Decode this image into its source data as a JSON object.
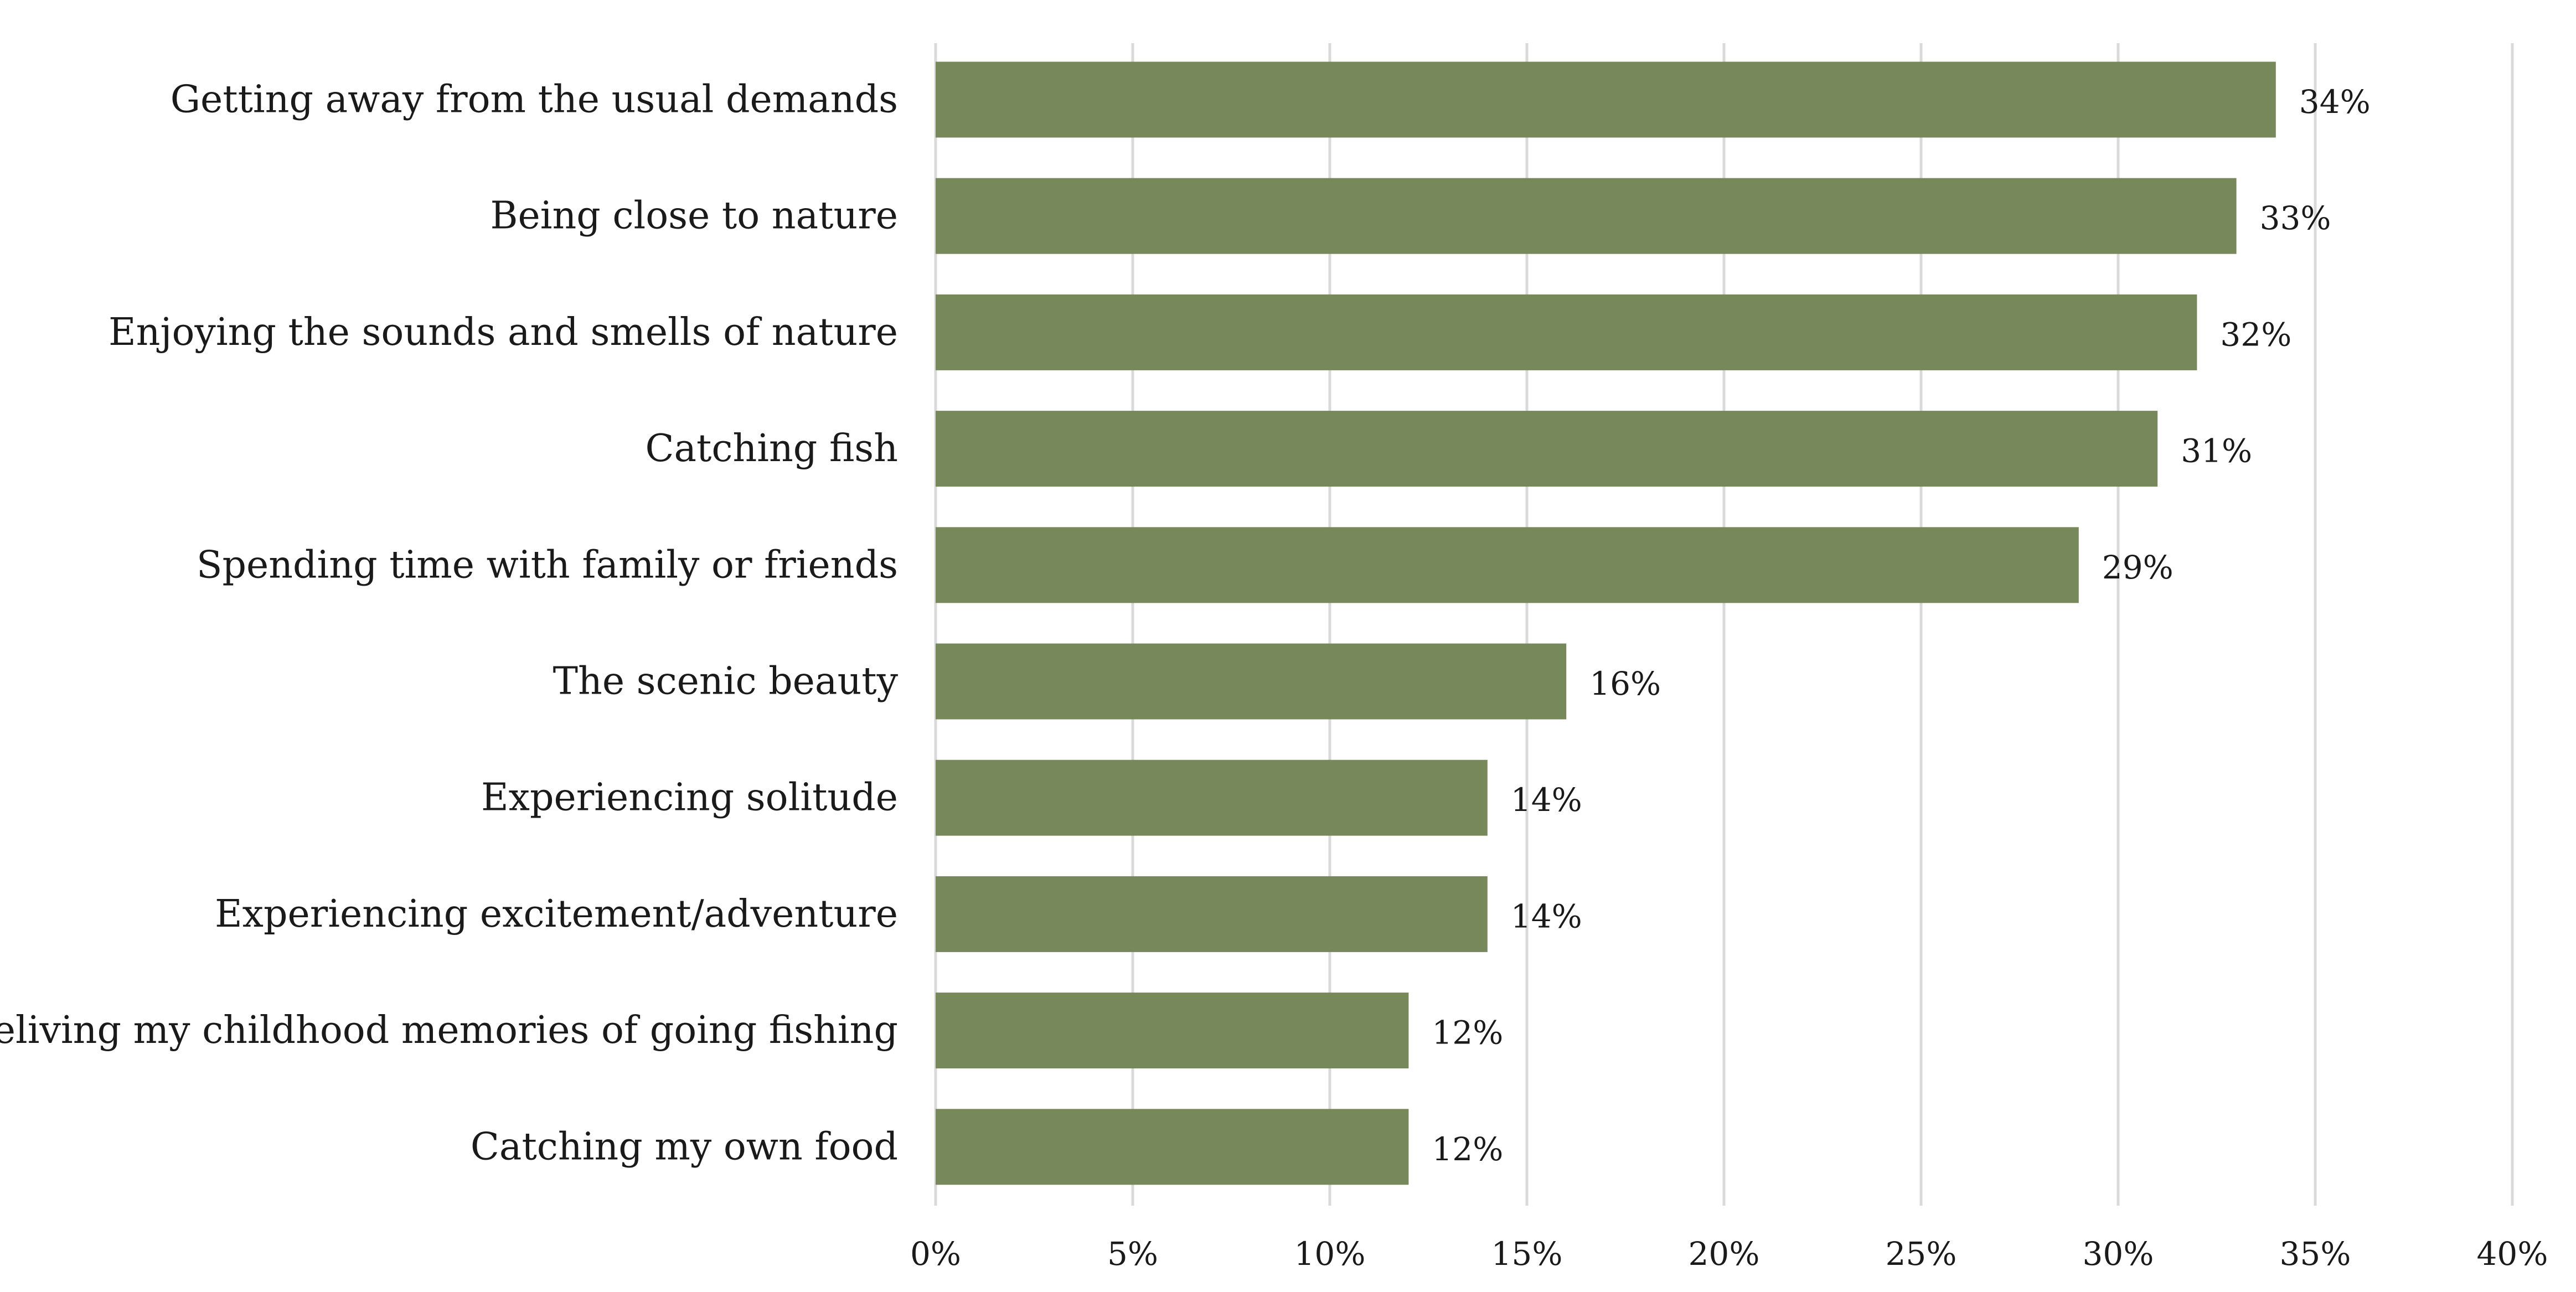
{
  "chart_data": {
    "type": "bar",
    "orientation": "horizontal",
    "categories": [
      "Getting away from the usual demands",
      "Being close to nature",
      "Enjoying the sounds and smells of nature",
      "Catching fish",
      "Spending time with family or friends",
      "The scenic beauty",
      "Experiencing solitude",
      "Experiencing excitement/adventure",
      "Reliving my childhood memories of going fishing",
      "Catching my own food"
    ],
    "values": [
      34,
      33,
      32,
      31,
      29,
      16,
      14,
      14,
      12,
      12
    ],
    "value_labels": [
      "34%",
      "33%",
      "32%",
      "31%",
      "29%",
      "16%",
      "14%",
      "14%",
      "12%",
      "12%"
    ],
    "x_ticks": [
      "0%",
      "5%",
      "10%",
      "15%",
      "20%",
      "25%",
      "30%",
      "35%",
      "40%"
    ],
    "xlim": [
      0,
      40
    ],
    "grid": true,
    "legend": "none",
    "bar_color": "#77885a",
    "title": "",
    "xlabel": "",
    "ylabel": ""
  }
}
